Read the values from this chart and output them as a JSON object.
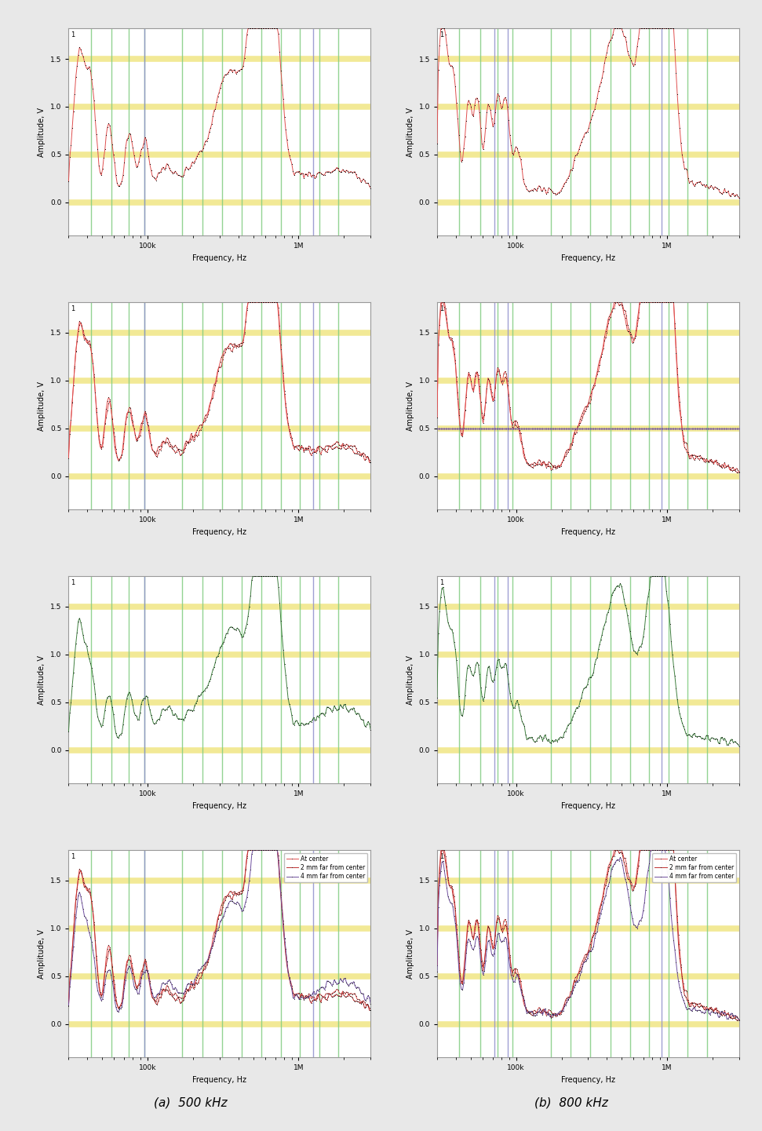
{
  "title_a": "(a)  500 kHz",
  "title_b": "(b)  800 kHz",
  "xlabel": "Frequency, Hz",
  "ylabel": "Amplitude, V",
  "ylim": [
    -0.35,
    1.82
  ],
  "xlim": [
    30000,
    3000000
  ],
  "yticks": [
    0.0,
    0.5,
    1.0,
    1.5
  ],
  "hline_color": "#e8d840",
  "hline_alpha": 0.55,
  "hline_lw": 5.5,
  "vline_green": [
    42000,
    58000,
    75000,
    95000,
    170000,
    230000,
    310000,
    420000,
    570000,
    760000,
    1020000,
    1370000,
    1840000
  ],
  "vline_blue_500": [
    95000,
    1250000
  ],
  "vline_blue_800": [
    72000,
    88000,
    920000
  ],
  "vline_green_color": "#80cc80",
  "vline_blue_color": "#9090cc",
  "vline_alpha": 0.85,
  "vline_lw": 1.0,
  "label_text": "1",
  "line_color_red": "#e05050",
  "line_color_darkred": "#c03030",
  "line_color_black": "#202020",
  "line_color_green": "#408040",
  "line_color_purple": "#7050a0",
  "line_color_cyan": "#40a0a0",
  "line_lw": 0.7,
  "marker_color": "#101010",
  "marker_size": 1.5,
  "legend_labels": [
    "At center",
    "2 mm far from center",
    "4 mm far from center"
  ],
  "legend_loc": "upper right",
  "legend_fontsize": 5.5,
  "background_color": "#e8e8e8",
  "ax_background": "#ffffff",
  "border_color": "#999999",
  "figsize": [
    9.71,
    14.41
  ],
  "dpi": 100
}
